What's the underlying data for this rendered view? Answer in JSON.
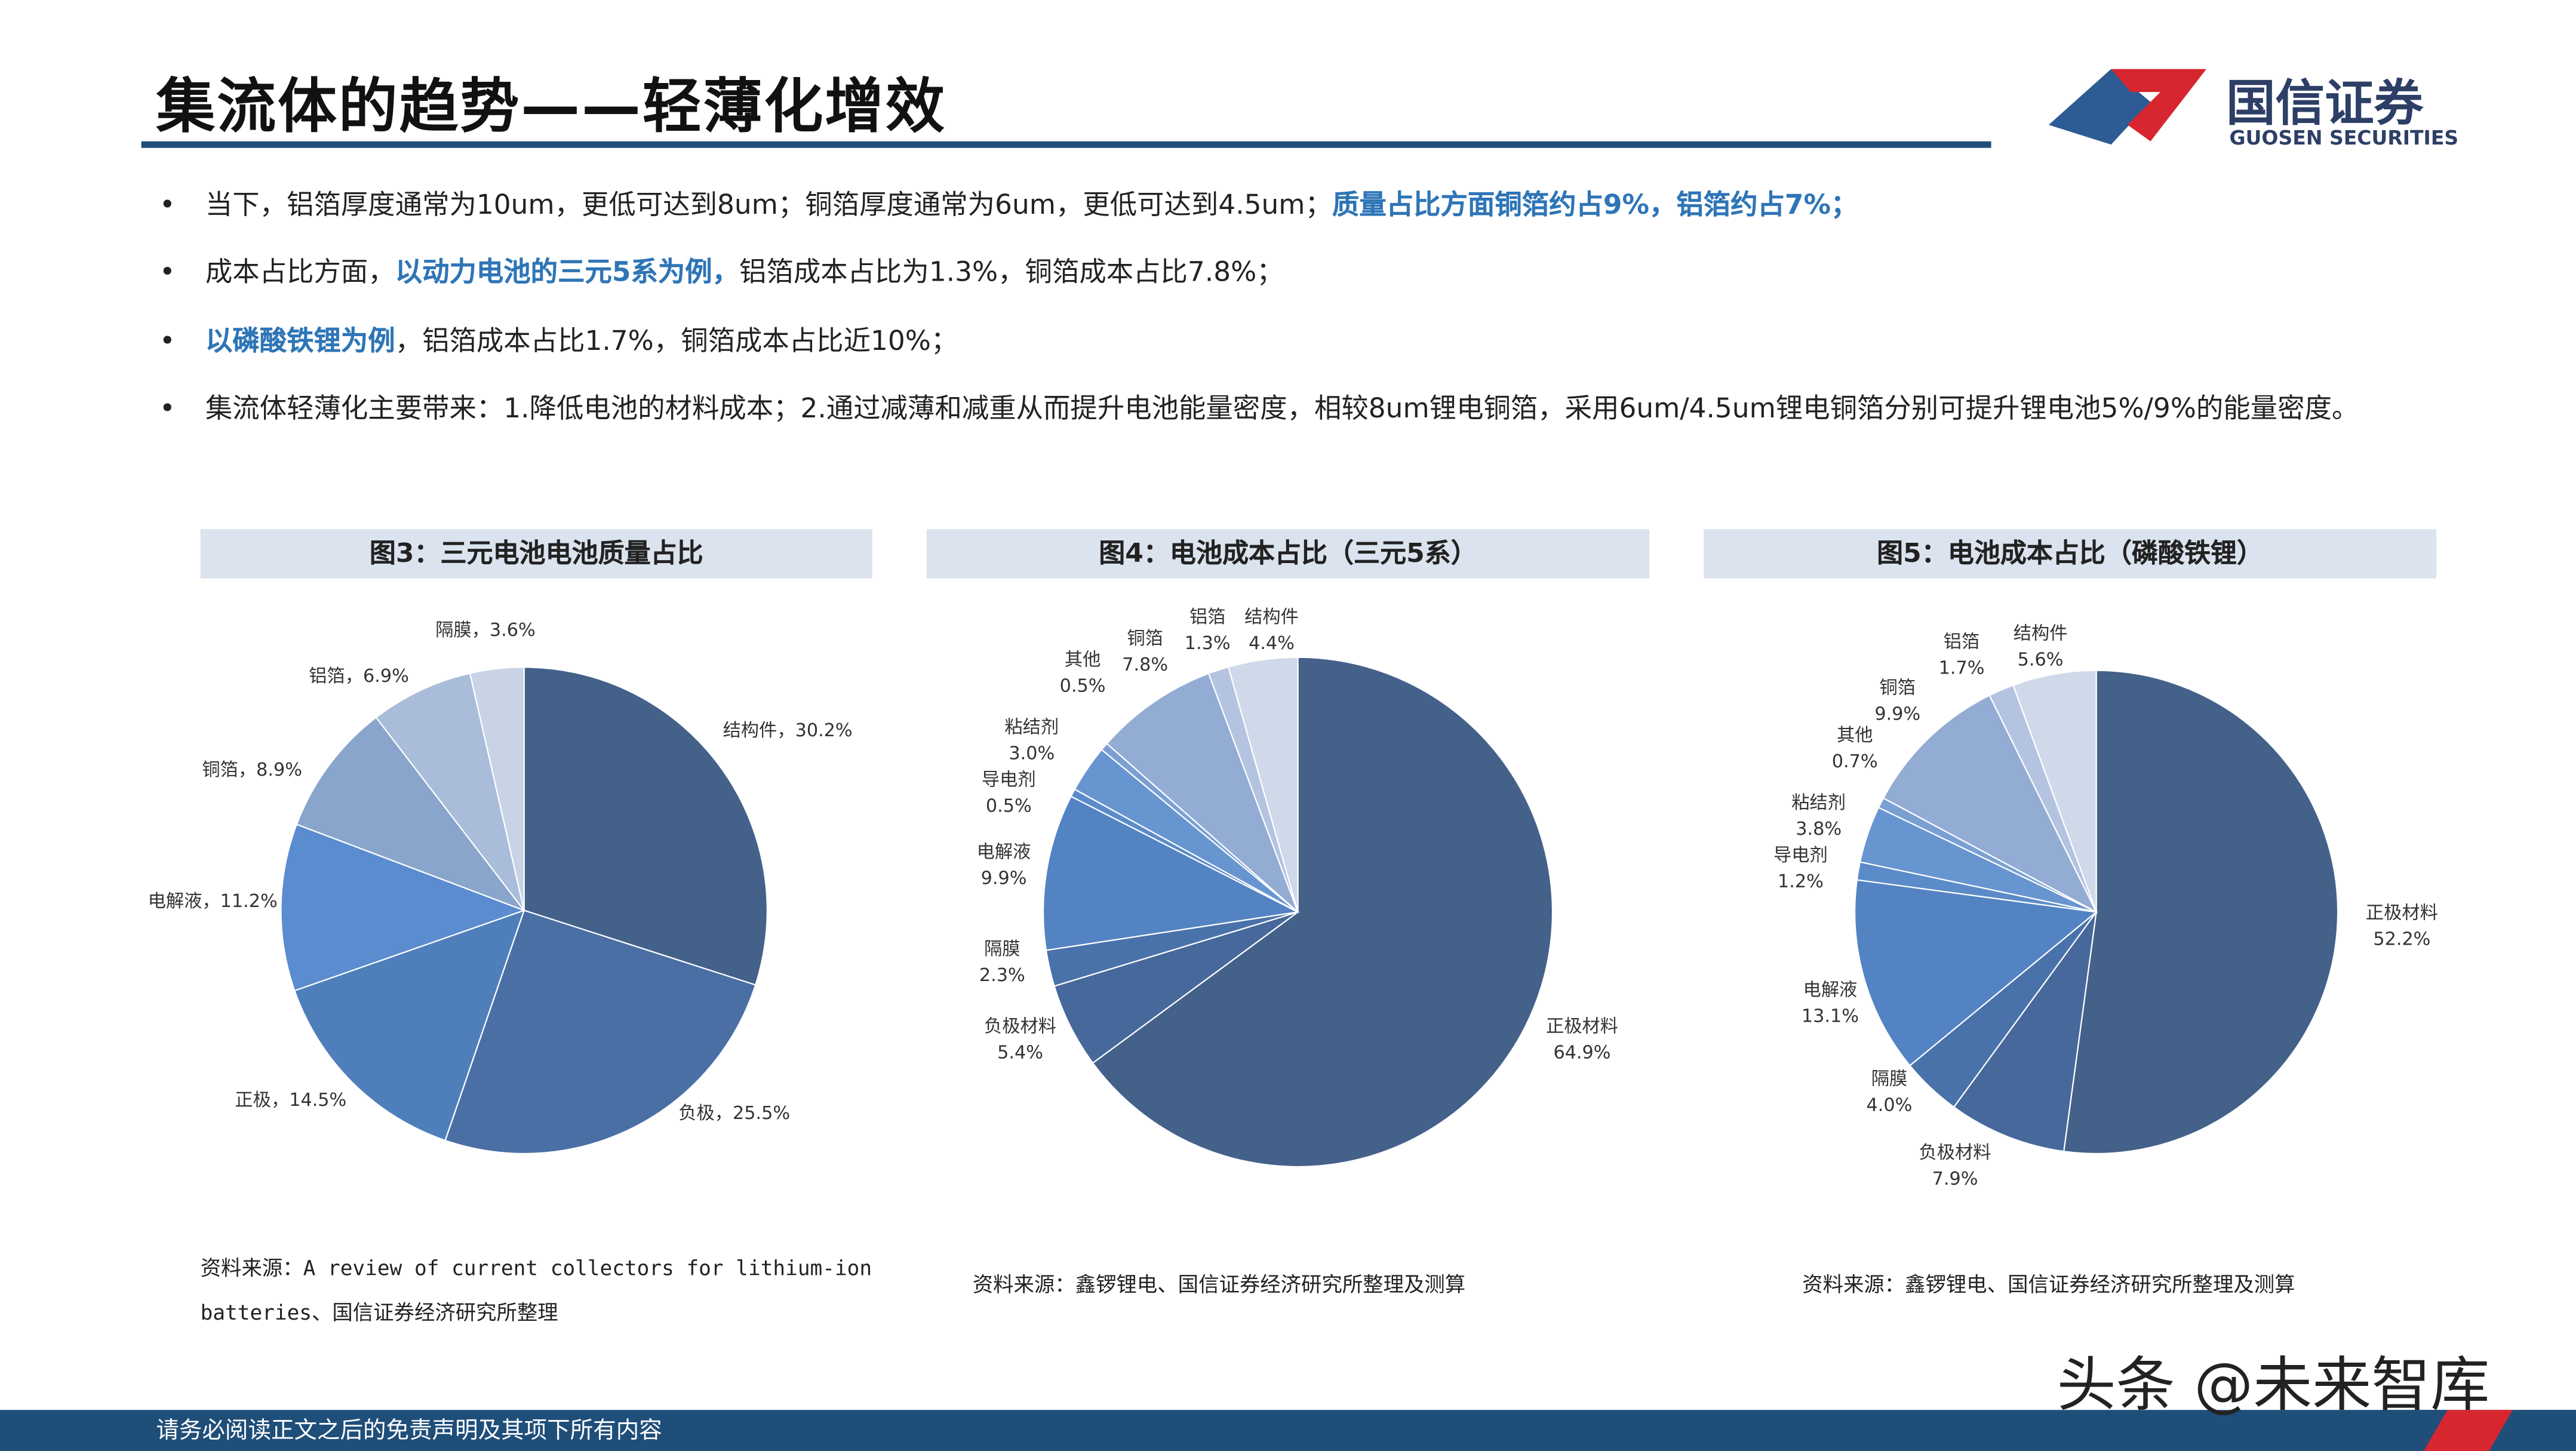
{
  "header": {
    "title": "集流体的趋势——轻薄化增效",
    "logo_cn": "国信证券",
    "logo_en": "GUOSEN SECURITIES"
  },
  "bullets": [
    [
      {
        "text": "当下，铝箔厚度通常为10um，更低可达到8um；铜箔厚度通常为6um，更低可达到4.5um；",
        "bold": false
      },
      {
        "text": "质量占比方面铜箔约占9%，铝箔约占7%；",
        "bold": true
      }
    ],
    [
      {
        "text": "成本占比方面，",
        "bold": false
      },
      {
        "text": "以动力电池的三元5系为例，",
        "bold": true
      },
      {
        "text": "铝箔成本占比为1.3%，铜箔成本占比7.8%；",
        "bold": false
      }
    ],
    [
      {
        "text": "以磷酸铁锂为例",
        "bold": true
      },
      {
        "text": "，铝箔成本占比1.7%，铜箔成本占比近10%；",
        "bold": false
      }
    ],
    [
      {
        "text": "集流体轻薄化主要带来：1.降低电池的材料成本；2.通过减薄和减重从而提升电池能量密度，相较8um锂电铜箔，采用6um/4.5um锂电铜箔分别可提升锂电池5%/9%的能量密度。",
        "bold": false
      }
    ]
  ],
  "chart_data": [
    {
      "type": "pie",
      "title": "图3：三元电池电池质量占比",
      "categories": [
        "结构件",
        "负极",
        "正极",
        "电解液",
        "铜箔",
        "铝箔",
        "隔膜"
      ],
      "values": [
        30.2,
        25.5,
        14.5,
        11.2,
        8.9,
        6.9,
        3.6
      ],
      "value_labels": [
        "30.2%",
        "25.5%",
        "14.5%",
        "11.2%",
        "8.9%",
        "6.9%",
        "3.6%"
      ],
      "label_separator": "，",
      "colors": [
        "#44618a",
        "#4a6fa5",
        "#4f7fbb",
        "#5a8ccf",
        "#8aa5cc",
        "#a9bcd9",
        "#c8d3e6"
      ],
      "source": [
        "资料来源：A review of current collectors for lithium-ion",
        "batteries、国信证券经济研究所整理"
      ]
    },
    {
      "type": "pie",
      "title": "图4：电池成本占比（三元5系）",
      "categories": [
        "正极材料",
        "负极材料",
        "隔膜",
        "电解液",
        "导电剂",
        "粘结剂",
        "其他",
        "铜箔",
        "铝箔",
        "结构件"
      ],
      "values": [
        64.9,
        5.4,
        2.3,
        9.9,
        0.5,
        3.0,
        0.5,
        7.8,
        1.3,
        4.4
      ],
      "value_labels": [
        "64.9%",
        "5.4%",
        "2.3%",
        "9.9%",
        "0.5%",
        "3.0%",
        "0.5%",
        "7.8%",
        "1.3%",
        "4.4%"
      ],
      "colors": [
        "#44618a",
        "#47689a",
        "#4a72aa",
        "#5383c3",
        "#5b8cc9",
        "#6795cf",
        "#7aa0d3",
        "#93acd4",
        "#b4c3e0",
        "#d0d9ea"
      ],
      "source": [
        "资料来源：鑫锣锂电、国信证券经济研究所整理及测算"
      ]
    },
    {
      "type": "pie",
      "title": "图5：电池成本占比（磷酸铁锂）",
      "categories": [
        "正极材料",
        "负极材料",
        "隔膜",
        "电解液",
        "导电剂",
        "粘结剂",
        "其他",
        "铜箔",
        "铝箔",
        "结构件"
      ],
      "values": [
        52.2,
        7.9,
        4.0,
        13.1,
        1.2,
        3.8,
        0.7,
        9.9,
        1.7,
        5.6
      ],
      "value_labels": [
        "52.2%",
        "7.9%",
        "4.0%",
        "13.1%",
        "1.2%",
        "3.8%",
        "0.7%",
        "9.9%",
        "1.7%",
        "5.6%"
      ],
      "colors": [
        "#44618a",
        "#47689a",
        "#4a72aa",
        "#5383c3",
        "#5b8cc9",
        "#6795cf",
        "#7aa0d3",
        "#93acd4",
        "#b4c3e0",
        "#d0d9ea"
      ],
      "source": [
        "资料来源：鑫锣锂电、国信证券经济研究所整理及测算"
      ]
    }
  ],
  "footer": {
    "disclaimer": "请务必阅读正文之后的免责声明及其项下所有内容",
    "watermark": "头条 @未来智库"
  }
}
